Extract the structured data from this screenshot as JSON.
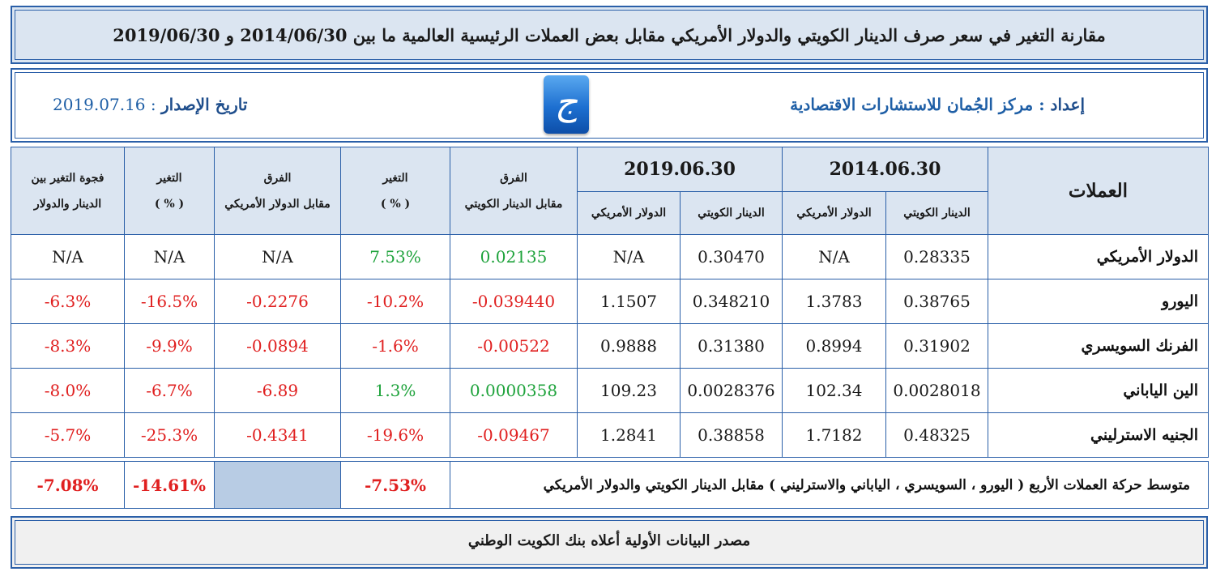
{
  "title": "مقارنة التغير في سعر صرف الدينار الكويتي والدولار الأمريكي مقابل بعض العملات الرئيسية العالمية ما بين 2014/06/30 و 2019/06/30",
  "info": {
    "prepared_label": "إعداد",
    "prepared_value": ": مركز الجُمان للاستشارات الاقتصادية",
    "issue_label": "تاريخ الإصدار",
    "issue_value": ": 2019.07.16",
    "logo_glyph": "ج"
  },
  "headers": {
    "currencies": "العملات",
    "date1": "2014.06.30",
    "date2": "2019.06.30",
    "kwd": "الدينار الكويتي",
    "usd": "الدولار الأمريكي",
    "diff": "الفرق",
    "vs_kwd": "مقابل الدينار الكويتي",
    "change": "التغير",
    "pct": "( % )",
    "vs_usd": "مقابل الدولار الأمريكي",
    "gap_line1": "فجوة التغير بين",
    "gap_line2": "الدينار والدولار"
  },
  "rows": [
    {
      "currency": "الدولار الأمريكي",
      "kwd2014": "0.28335",
      "usd2014": "N/A",
      "kwd2019": "0.30470",
      "usd2019": "N/A",
      "diff_kwd": "0.02135",
      "chg_kwd": "7.53%",
      "diff_usd": "N/A",
      "chg_usd": "N/A",
      "gap": "N/A",
      "c_diff_kwd": "green",
      "c_chg_kwd": "green",
      "c_diff_usd": "",
      "c_chg_usd": "",
      "c_gap": ""
    },
    {
      "currency": "اليورو",
      "kwd2014": "0.38765",
      "usd2014": "1.3783",
      "kwd2019": "0.348210",
      "usd2019": "1.1507",
      "diff_kwd": "-0.039440",
      "chg_kwd": "-10.2%",
      "diff_usd": "-0.2276",
      "chg_usd": "-16.5%",
      "gap": "-6.3%",
      "c_diff_kwd": "red",
      "c_chg_kwd": "red",
      "c_diff_usd": "red",
      "c_chg_usd": "red",
      "c_gap": "red"
    },
    {
      "currency": "الفرنك السويسري",
      "kwd2014": "0.31902",
      "usd2014": "0.8994",
      "kwd2019": "0.31380",
      "usd2019": "0.9888",
      "diff_kwd": "-0.00522",
      "chg_kwd": "-1.6%",
      "diff_usd": "-0.0894",
      "chg_usd": "-9.9%",
      "gap": "-8.3%",
      "c_diff_kwd": "red",
      "c_chg_kwd": "red",
      "c_diff_usd": "red",
      "c_chg_usd": "red",
      "c_gap": "red"
    },
    {
      "currency": "الين الياباني",
      "kwd2014": "0.0028018",
      "usd2014": "102.34",
      "kwd2019": "0.0028376",
      "usd2019": "109.23",
      "diff_kwd": "0.0000358",
      "chg_kwd": "1.3%",
      "diff_usd": "-6.89",
      "chg_usd": "-6.7%",
      "gap": "-8.0%",
      "c_diff_kwd": "green",
      "c_chg_kwd": "green",
      "c_diff_usd": "red",
      "c_chg_usd": "red",
      "c_gap": "red"
    },
    {
      "currency": "الجنيه الاسترليني",
      "kwd2014": "0.48325",
      "usd2014": "1.7182",
      "kwd2019": "0.38858",
      "usd2019": "1.2841",
      "diff_kwd": "-0.09467",
      "chg_kwd": "-19.6%",
      "diff_usd": "-0.4341",
      "chg_usd": "-25.3%",
      "gap": "-5.7%",
      "c_diff_kwd": "red",
      "c_chg_kwd": "red",
      "c_diff_usd": "red",
      "c_chg_usd": "red",
      "c_gap": "red"
    }
  ],
  "average": {
    "label": "متوسط حركة العملات الأربع ( اليورو ، السويسري ، الياباني والاسترليني ) مقابل الدينار الكويتي والدولار الأمريكي",
    "chg_kwd": "-7.53%",
    "chg_usd": "-14.61%",
    "gap": "-7.08%"
  },
  "source": "مصدر البيانات الأولية أعلاه بنك الكويت الوطني",
  "colors": {
    "red": "#e02020",
    "green": "#1fa33c",
    "header_bg": "#dbe5f1",
    "border": "#2a5fa8"
  }
}
